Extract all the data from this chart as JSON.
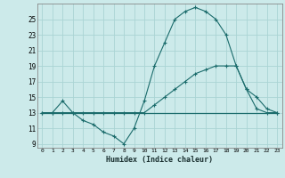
{
  "xlabel": "Humidex (Indice chaleur)",
  "x_ticks": [
    0,
    1,
    2,
    3,
    4,
    5,
    6,
    7,
    8,
    9,
    10,
    11,
    12,
    13,
    14,
    15,
    16,
    17,
    18,
    19,
    20,
    21,
    22,
    23
  ],
  "ylim": [
    8.5,
    27
  ],
  "xlim": [
    -0.5,
    23.5
  ],
  "yticks": [
    9,
    11,
    13,
    15,
    17,
    19,
    21,
    23,
    25
  ],
  "bg_color": "#cceaea",
  "grid_color": "#aad4d4",
  "line_color": "#1a6b6b",
  "line1_x": [
    0,
    1,
    2,
    3,
    4,
    5,
    6,
    7,
    8,
    9,
    10,
    11,
    12,
    13,
    14,
    15,
    16,
    17,
    18,
    19,
    20,
    21,
    22,
    23
  ],
  "line1_y": [
    13,
    13,
    14.5,
    13,
    12,
    11.5,
    10.5,
    10,
    9,
    11,
    14.5,
    19,
    22,
    25,
    26,
    26.5,
    26,
    25,
    23,
    19,
    16,
    13.5,
    13,
    13
  ],
  "line2_x": [
    0,
    1,
    2,
    3,
    4,
    5,
    6,
    7,
    8,
    9,
    10,
    11,
    12,
    13,
    14,
    15,
    16,
    17,
    18,
    19,
    20,
    21,
    22,
    23
  ],
  "line2_y": [
    13,
    13,
    13,
    13,
    13,
    13,
    13,
    13,
    13,
    13,
    13,
    14,
    15,
    16,
    17,
    18,
    18.5,
    19,
    19,
    19,
    16,
    15,
    13.5,
    13
  ],
  "line3_x": [
    0,
    1,
    2,
    3,
    4,
    5,
    6,
    7,
    8,
    9,
    10,
    11,
    12,
    13,
    14,
    15,
    16,
    17,
    18,
    19,
    20,
    21,
    22,
    23
  ],
  "line3_y": [
    13,
    13,
    13,
    13,
    13,
    13,
    13,
    13,
    13,
    13,
    13,
    13,
    13,
    13,
    13,
    13,
    13,
    13,
    13,
    13,
    13,
    13,
    13,
    13
  ],
  "line1_markers": true,
  "line2_markers": true,
  "line3_markers": false
}
